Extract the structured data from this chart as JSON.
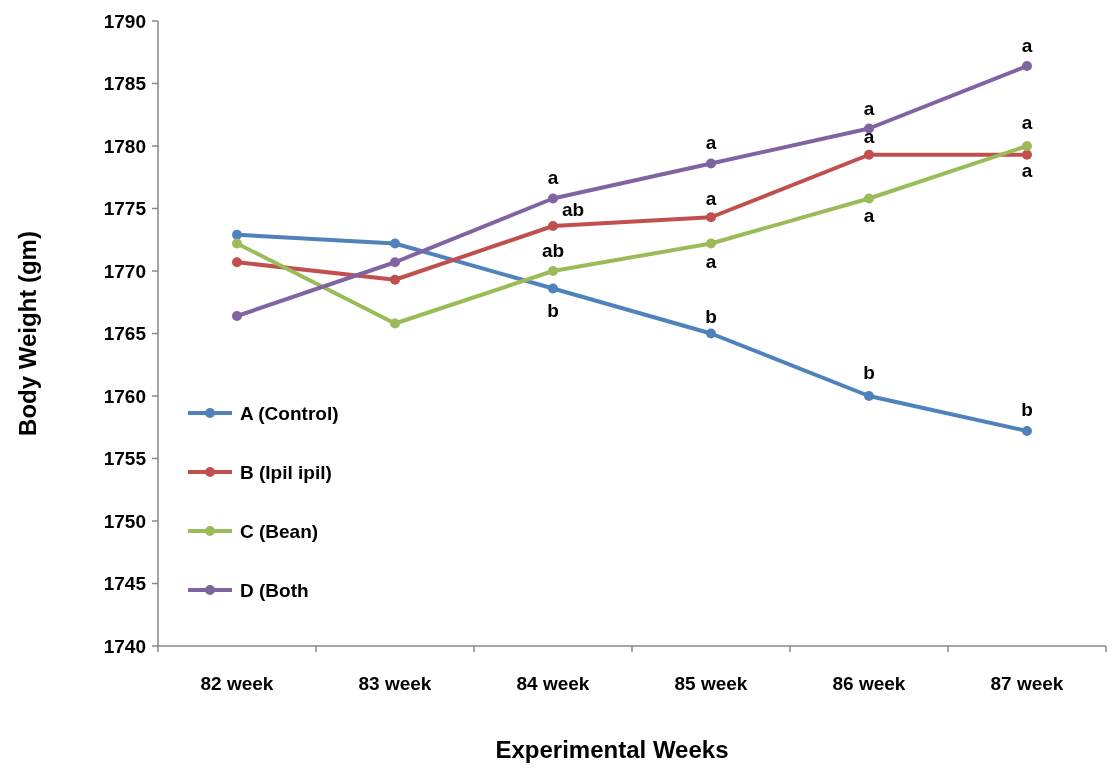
{
  "chart_data": {
    "type": "line",
    "xlabel": "Experimental Weeks",
    "ylabel": "Body Weight (gm)",
    "categories": [
      "82 week",
      "83 week",
      "84 week",
      "85 week",
      "86 week",
      "87 week"
    ],
    "series": [
      {
        "name": "A (Control)",
        "color": "#4f81bd",
        "values": [
          1772.9,
          1772.2,
          1768.6,
          1765.0,
          1760.0,
          1757.2
        ]
      },
      {
        "name": "B (Ipil ipil)",
        "color": "#c0504d",
        "values": [
          1770.7,
          1769.3,
          1773.6,
          1774.3,
          1779.3,
          1779.3
        ]
      },
      {
        "name": "C (Bean)",
        "color": "#9bbb59",
        "values": [
          1772.2,
          1765.8,
          1770.0,
          1772.2,
          1775.8,
          1780.0
        ]
      },
      {
        "name": "D (Both",
        "color": "#8064a2",
        "values": [
          1766.4,
          1770.7,
          1775.8,
          1778.6,
          1781.4,
          1786.4
        ]
      }
    ],
    "ylim": [
      1740,
      1790
    ],
    "yticks": [
      1740,
      1745,
      1750,
      1755,
      1760,
      1765,
      1770,
      1775,
      1780,
      1785,
      1790
    ],
    "grid": false,
    "legend": "bottom left",
    "marker": "circle",
    "line_style": "solid",
    "annotations": [
      {
        "text": "a",
        "x": "84 week",
        "y": 1775.8
      },
      {
        "text": "ab",
        "x": "84 week",
        "y": 1773.6
      },
      {
        "text": "ab",
        "x": "84 week",
        "y": 1770.0
      },
      {
        "text": "b",
        "x": "84 week",
        "y": 1768.6
      },
      {
        "text": "a",
        "x": "85 week",
        "y": 1778.6
      },
      {
        "text": "a",
        "x": "85 week",
        "y": 1774.3
      },
      {
        "text": "a",
        "x": "85 week",
        "y": 1772.2
      },
      {
        "text": "b",
        "x": "85 week",
        "y": 1765.0
      },
      {
        "text": "a",
        "x": "86 week",
        "y": 1781.4
      },
      {
        "text": "a",
        "x": "86 week",
        "y": 1779.3
      },
      {
        "text": "a",
        "x": "86 week",
        "y": 1775.8
      },
      {
        "text": "b",
        "x": "86 week",
        "y": 1760.0
      },
      {
        "text": "a",
        "x": "87 week",
        "y": 1786.4
      },
      {
        "text": "a",
        "x": "87 week",
        "y": 1780.0
      },
      {
        "text": "a",
        "x": "87 week",
        "y": 1779.3
      },
      {
        "text": "b",
        "x": "87 week",
        "y": 1757.2
      }
    ]
  }
}
